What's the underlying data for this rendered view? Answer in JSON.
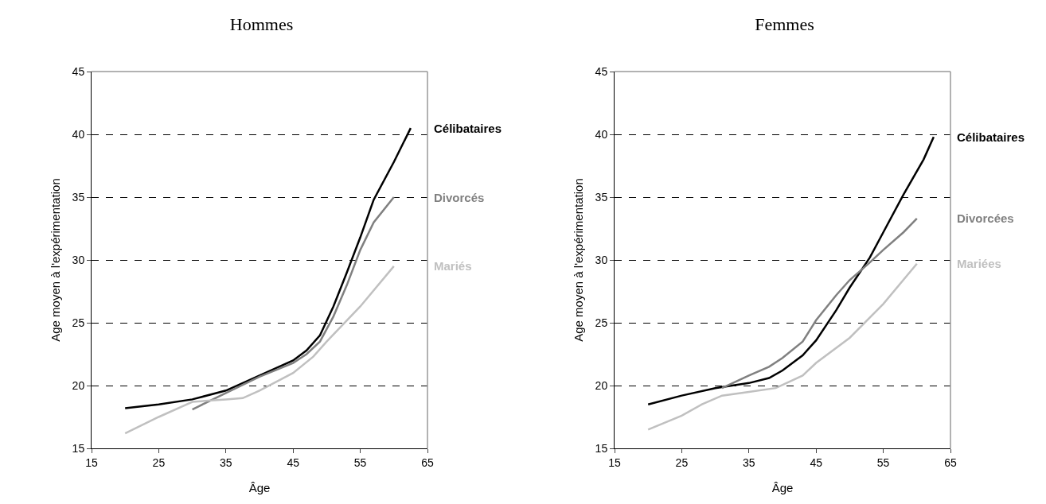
{
  "chart_data": [
    {
      "type": "line",
      "title": "Hommes",
      "xlabel": "Âge",
      "ylabel": "Age moyen à l'expérimentation",
      "xlim": [
        15,
        65
      ],
      "xticks": [
        15,
        25,
        35,
        45,
        55,
        65
      ],
      "ylim": [
        15,
        45
      ],
      "yticks": [
        15,
        20,
        25,
        30,
        35,
        40,
        45
      ],
      "grid": "y",
      "legend": false,
      "series": [
        {
          "name": "Célibataires",
          "color": "#000000",
          "x": [
            20,
            25,
            30,
            35,
            40,
            45,
            47,
            49,
            51,
            53,
            55,
            57,
            60,
            62.5
          ],
          "values": [
            18.2,
            18.5,
            18.9,
            19.6,
            20.8,
            22,
            22.8,
            24,
            26.3,
            29,
            31.8,
            34.8,
            37.8,
            40.5
          ]
        },
        {
          "name": "Divorcés",
          "color": "#808080",
          "x": [
            30,
            35,
            40,
            45,
            47,
            49,
            51,
            53,
            55,
            57,
            60
          ],
          "values": [
            18.1,
            19.4,
            20.7,
            21.8,
            22.5,
            23.5,
            25.5,
            28,
            30.8,
            33,
            35
          ]
        },
        {
          "name": "Mariés",
          "color": "#c0c0c0",
          "x": [
            20,
            25,
            30,
            35,
            37.5,
            40,
            45,
            48,
            50,
            55,
            60
          ],
          "values": [
            16.2,
            17.5,
            18.7,
            18.9,
            19,
            19.6,
            21,
            22.3,
            23.5,
            26.3,
            29.5
          ]
        }
      ]
    },
    {
      "type": "line",
      "title": "Femmes",
      "xlabel": "Âge",
      "ylabel": "Age moyen à l'expérimentation",
      "xlim": [
        15,
        65
      ],
      "xticks": [
        15,
        25,
        35,
        45,
        55,
        65
      ],
      "ylim": [
        15,
        45
      ],
      "yticks": [
        15,
        20,
        25,
        30,
        35,
        40,
        45
      ],
      "grid": "y",
      "legend": false,
      "series": [
        {
          "name": "Célibataires",
          "color": "#000000",
          "x": [
            20,
            25,
            30,
            35,
            38,
            40,
            43,
            45,
            48,
            50,
            53,
            55,
            58,
            61,
            62.5
          ],
          "values": [
            18.5,
            19.2,
            19.8,
            20.2,
            20.6,
            21.2,
            22.4,
            23.6,
            26,
            27.8,
            30.2,
            32.2,
            35.2,
            38,
            39.8
          ]
        },
        {
          "name": "Divorcées",
          "color": "#808080",
          "x": [
            31,
            35,
            38,
            40,
            43,
            45,
            48,
            50,
            53,
            55,
            58,
            60
          ],
          "values": [
            19.8,
            20.8,
            21.5,
            22.2,
            23.5,
            25.2,
            27.2,
            28.4,
            29.8,
            30.8,
            32.2,
            33.3
          ]
        },
        {
          "name": "Mariées",
          "color": "#c0c0c0",
          "x": [
            20,
            25,
            28,
            31,
            35,
            39,
            43,
            45,
            50,
            55,
            60
          ],
          "values": [
            16.5,
            17.6,
            18.5,
            19.2,
            19.5,
            19.8,
            20.8,
            21.8,
            23.8,
            26.5,
            29.7
          ]
        }
      ]
    }
  ]
}
